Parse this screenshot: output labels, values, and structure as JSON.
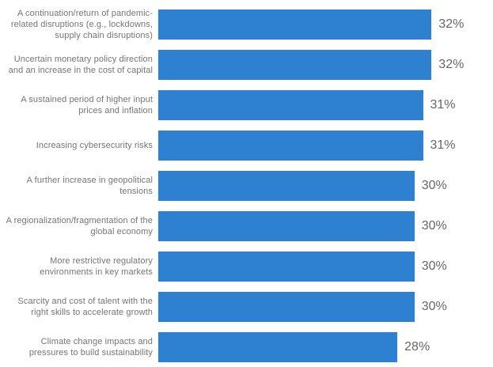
{
  "chart_data": {
    "type": "bar",
    "orientation": "horizontal",
    "title": "",
    "xlabel": "",
    "ylabel": "",
    "grid": false,
    "legend": false,
    "xlim": [
      0,
      39.2
    ],
    "bar_color": "#2e81d1",
    "label_color": "#757575",
    "value_color": "#666666",
    "value_suffix": "%",
    "categories": [
      "A continuation/return of pandemic-related disruptions (e.g., lockdowns, supply chain disruptions)",
      "Uncertain monetary policy direction and an increase in the cost of capital",
      "A sustained period of higher input prices and inflation",
      "Increasing cybersecurity risks",
      "A further increase in geopolitical tensions",
      "A regionalization/fragmentation of the global economy",
      "More restrictive regulatory environments in key markets",
      "Scarcity and cost of talent with the right skills to accelerate growth",
      "Climate change impacts and pressures to build sustainability"
    ],
    "values": [
      32,
      32,
      31,
      31,
      30,
      30,
      30,
      30,
      28
    ],
    "value_labels": [
      "32%",
      "32%",
      "31%",
      "31%",
      "30%",
      "30%",
      "30%",
      "30%",
      "28%"
    ]
  }
}
